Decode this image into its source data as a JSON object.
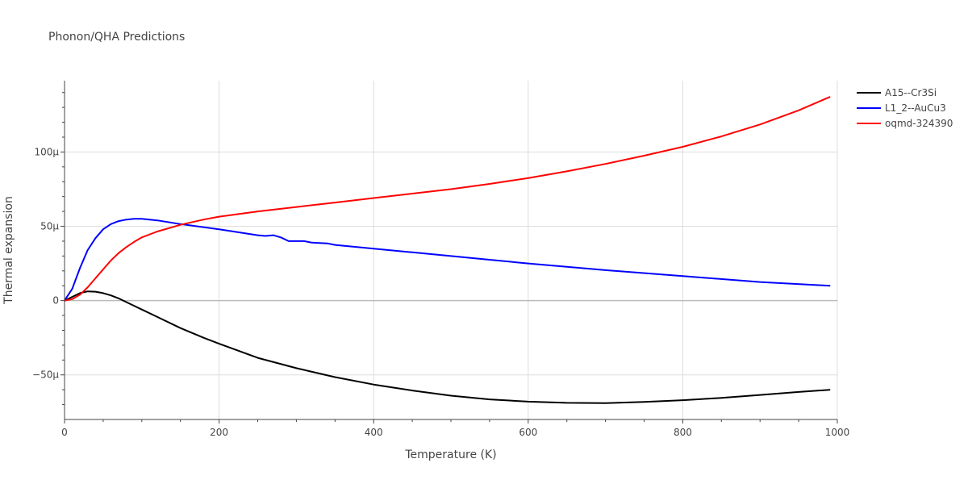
{
  "chart_data": {
    "type": "line",
    "title": "Phonon/QHA Predictions",
    "xlabel": "Temperature (K)",
    "ylabel": "Thermal expansion",
    "xlim": [
      0,
      1000
    ],
    "ylim": [
      -80,
      148
    ],
    "x_ticks": [
      0,
      200,
      400,
      600,
      800,
      1000
    ],
    "x_tick_labels": [
      "0",
      "200",
      "400",
      "600",
      "800",
      "1000"
    ],
    "y_ticks": [
      -50,
      0,
      50,
      100
    ],
    "y_tick_labels": [
      "−50µ",
      "0",
      "50µ",
      "100µ"
    ],
    "grid": true,
    "legend_position": "top-right",
    "series": [
      {
        "name": "A15--Cr3Si",
        "color": "#000000",
        "x": [
          0,
          10,
          20,
          30,
          40,
          50,
          60,
          70,
          80,
          100,
          120,
          150,
          180,
          200,
          250,
          300,
          350,
          400,
          450,
          500,
          550,
          600,
          650,
          700,
          750,
          800,
          850,
          900,
          950,
          990
        ],
        "y": [
          0,
          2.5,
          5,
          6.2,
          6,
          5,
          3.5,
          1.5,
          -1,
          -6,
          -11,
          -18.5,
          -25,
          -29,
          -38.5,
          -45.5,
          -51.5,
          -56.5,
          -60.5,
          -64,
          -66.5,
          -68,
          -68.8,
          -69,
          -68.2,
          -67,
          -65.5,
          -63.5,
          -61.5,
          -60
        ]
      },
      {
        "name": "L1_2--AuCu3",
        "color": "#0000ff",
        "x": [
          0,
          10,
          20,
          30,
          40,
          50,
          60,
          70,
          80,
          90,
          100,
          120,
          150,
          200,
          250,
          260,
          270,
          280,
          290,
          300,
          310,
          320,
          340,
          350,
          400,
          450,
          500,
          550,
          600,
          700,
          800,
          900,
          990
        ],
        "y": [
          0,
          8,
          22,
          34,
          42,
          48,
          51.5,
          53.5,
          54.5,
          55,
          55,
          54,
          51.5,
          48,
          44,
          43.5,
          44,
          42.5,
          40,
          40,
          40,
          39,
          38.5,
          37.5,
          35,
          32.5,
          30,
          27.5,
          25,
          20.5,
          16.5,
          12.5,
          10
        ]
      },
      {
        "name": "oqmd-324390",
        "color": "#ff0000",
        "x": [
          0,
          10,
          20,
          30,
          40,
          50,
          60,
          70,
          80,
          90,
          100,
          120,
          150,
          180,
          200,
          250,
          300,
          350,
          400,
          450,
          500,
          550,
          600,
          650,
          700,
          750,
          800,
          850,
          900,
          950,
          990
        ],
        "y": [
          0,
          1,
          4,
          9,
          15,
          21,
          27,
          32,
          36,
          39.5,
          42.5,
          46.5,
          51,
          54.5,
          56.5,
          60,
          63,
          66,
          69,
          72,
          75,
          78.5,
          82.5,
          87,
          92,
          97.5,
          103.5,
          110.5,
          118.5,
          128,
          137
        ]
      }
    ]
  }
}
